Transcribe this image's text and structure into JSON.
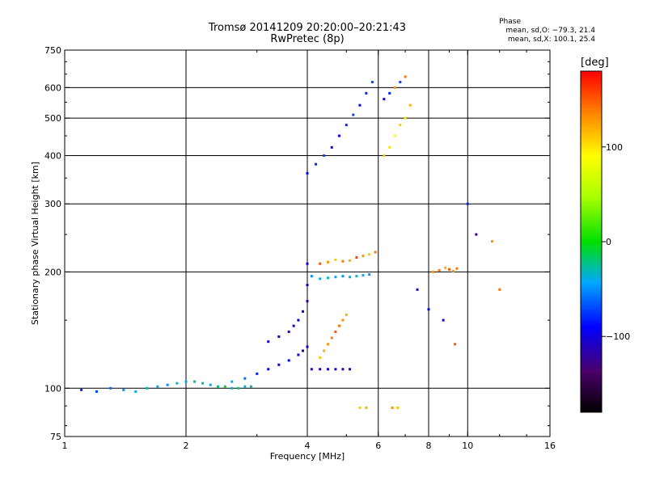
{
  "title_line1": "Tromsø 20141209 20:20:00–20:21:43",
  "title_line2": "RwPretec (8p)",
  "phase_title": "Phase",
  "phase_o": "mean, sd,O: −79.3, 21.4",
  "phase_x": "mean, sd,X: 100.1, 25.4",
  "colorbar": {
    "unit": "[deg]",
    "range": [
      -180,
      180
    ],
    "ticks": [
      100,
      0,
      -100
    ],
    "tick_labels": [
      "100",
      "0",
      "−100"
    ]
  },
  "chart_data": {
    "type": "scatter",
    "title": "Tromsø 20141209 20:20:00–20:21:43",
    "subtitle": "RwPretec (8p)",
    "xlabel": "Frequency [MHz]",
    "ylabel": "Stationary phase Virtual Height [km]",
    "xscale": "log",
    "yscale": "log",
    "xlim": [
      1,
      16
    ],
    "ylim": [
      75,
      750
    ],
    "x_ticks": [
      1,
      2,
      4,
      6,
      8,
      10,
      16
    ],
    "x_tick_labels": [
      "1",
      "2",
      "4",
      "6",
      "8",
      "10",
      "16"
    ],
    "y_ticks": [
      75,
      100,
      200,
      300,
      400,
      500,
      600,
      750
    ],
    "y_tick_labels": [
      "75",
      "100",
      "200",
      "300",
      "400",
      "500",
      "600",
      "750"
    ],
    "grid": true,
    "color_variable": "Phase [deg]",
    "point_groups": [
      {
        "x": [
          1.1,
          1.2,
          1.3,
          1.4,
          1.5,
          1.6,
          1.7,
          1.8,
          1.9,
          2.0,
          2.1,
          2.2,
          2.3,
          2.4,
          2.5,
          2.6,
          2.7,
          2.8,
          2.9
        ],
        "y": [
          99,
          98,
          100,
          99,
          98,
          100,
          101,
          102,
          103,
          104,
          104,
          103,
          102,
          101,
          101,
          100,
          100,
          101,
          101
        ],
        "phase": [
          -80,
          -70,
          -60,
          -50,
          -40,
          -30,
          -40,
          -50,
          -30,
          -40,
          -20,
          -30,
          -40,
          -20,
          -10,
          -30,
          -20,
          -40,
          -30
        ]
      },
      {
        "x": [
          2.6,
          2.8,
          3.0,
          3.2,
          3.4,
          3.6,
          3.8,
          3.9,
          4.0
        ],
        "y": [
          104,
          106,
          109,
          112,
          115,
          118,
          122,
          125,
          128
        ],
        "phase": [
          -40,
          -60,
          -80,
          -90,
          -100,
          -90,
          -100,
          -110,
          -100
        ]
      },
      {
        "x": [
          3.2,
          3.4,
          3.6,
          3.7,
          3.8,
          3.9,
          4.0,
          4.0,
          4.0
        ],
        "y": [
          132,
          136,
          140,
          145,
          150,
          158,
          168,
          185,
          210
        ],
        "phase": [
          -100,
          -110,
          -120,
          -110,
          -100,
          -110,
          -120,
          -110,
          -100
        ]
      },
      {
        "x": [
          4.1,
          4.3,
          4.5,
          4.7,
          4.9,
          5.1,
          5.3,
          5.5,
          5.7
        ],
        "y": [
          195,
          192,
          193,
          194,
          195,
          194,
          195,
          196,
          197
        ],
        "phase": [
          -50,
          -40,
          -30,
          -40,
          -50,
          -40,
          -30,
          -40,
          -50
        ]
      },
      {
        "x": [
          4.3,
          4.5,
          4.7,
          4.9,
          5.1,
          5.3,
          5.5,
          5.7,
          5.9
        ],
        "y": [
          210,
          212,
          215,
          213,
          214,
          218,
          220,
          222,
          225
        ],
        "phase": [
          150,
          130,
          110,
          140,
          120,
          160,
          130,
          110,
          140
        ]
      },
      {
        "x": [
          4.3,
          4.4,
          4.5,
          4.6,
          4.7,
          4.8,
          4.9,
          5.0
        ],
        "y": [
          120,
          125,
          130,
          135,
          140,
          145,
          150,
          155
        ],
        "phase": [
          110,
          120,
          130,
          140,
          150,
          140,
          130,
          120
        ]
      },
      {
        "x": [
          4.1,
          4.3,
          4.5,
          4.7,
          4.9,
          5.1
        ],
        "y": [
          112,
          112,
          112,
          112,
          112,
          112
        ],
        "phase": [
          -120,
          -110,
          -100,
          -110,
          -120,
          -110
        ]
      },
      {
        "x": [
          5.4,
          5.6,
          6.5,
          6.7
        ],
        "y": [
          89,
          89,
          89,
          89
        ],
        "phase": [
          110,
          120,
          130,
          110
        ]
      },
      {
        "x": [
          4.0,
          4.2,
          4.4,
          4.6,
          4.8,
          5.0,
          5.2,
          5.4,
          5.6,
          5.8
        ],
        "y": [
          360,
          380,
          400,
          420,
          450,
          480,
          510,
          540,
          580,
          620
        ],
        "phase": [
          -90,
          -80,
          -70,
          -100,
          -90,
          -80,
          -70,
          -90,
          -80,
          -70
        ]
      },
      {
        "x": [
          6.2,
          6.4,
          6.6,
          6.8,
          7.0,
          7.2
        ],
        "y": [
          400,
          420,
          450,
          480,
          500,
          540
        ],
        "phase": [
          110,
          100,
          90,
          110,
          100,
          120
        ]
      },
      {
        "x": [
          6.2,
          6.4,
          6.6,
          6.8,
          7.0
        ],
        "y": [
          560,
          580,
          600,
          620,
          640
        ],
        "phase": [
          -90,
          -80,
          130,
          -70,
          140
        ]
      },
      {
        "x": [
          8.2,
          8.5,
          8.8,
          9.0,
          9.2,
          9.4
        ],
        "y": [
          200,
          202,
          205,
          203,
          201,
          204
        ],
        "phase": [
          130,
          140,
          120,
          150,
          130,
          140
        ]
      },
      {
        "x": [
          7.5,
          8.0,
          8.7,
          9.3,
          10.0,
          10.5,
          11.5,
          12.0
        ],
        "y": [
          180,
          160,
          150,
          130,
          300,
          250,
          240,
          180
        ],
        "phase": [
          -110,
          -90,
          -100,
          150,
          -80,
          -120,
          130,
          140
        ]
      }
    ]
  }
}
